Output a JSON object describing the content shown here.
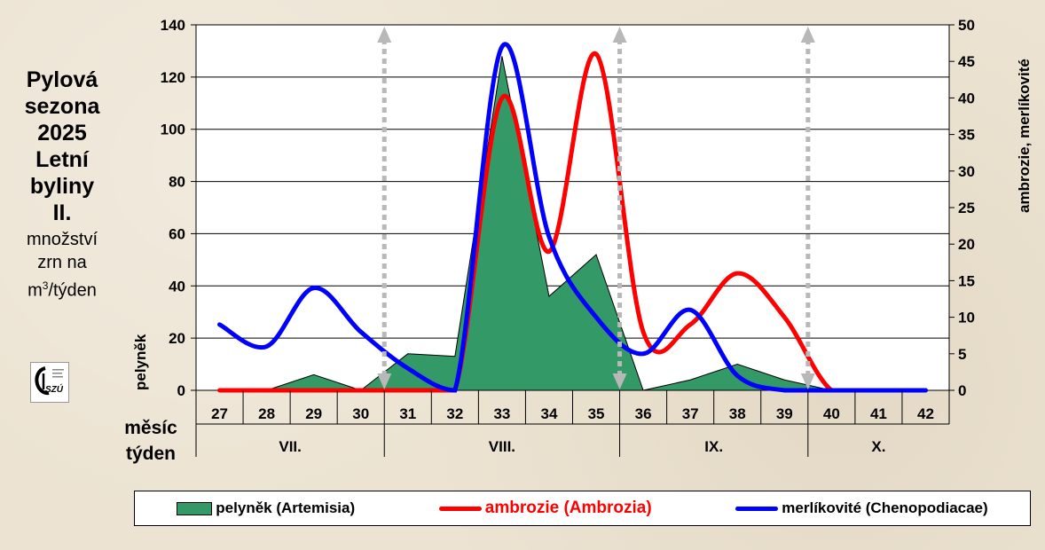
{
  "side_panel": {
    "title_lines": [
      "Pylová",
      "sezona",
      "2025",
      "Letní",
      "byliny",
      "II."
    ],
    "unit_lines": [
      "množství",
      "zrn na"
    ],
    "unit_m": "m",
    "unit_sup": "3",
    "unit_rest": "/týden",
    "logo_text": "SZÚ"
  },
  "colors": {
    "artemisia": "#339966",
    "ambrosia": "#ff0000",
    "chenopodiaceae": "#0000ff",
    "marker": "#b8b8b8"
  },
  "chart_data": {
    "type": "area",
    "categories": [
      "27",
      "28",
      "29",
      "30",
      "31",
      "32",
      "33",
      "34",
      "35",
      "36",
      "37",
      "38",
      "39",
      "40",
      "41",
      "42"
    ],
    "months": [
      {
        "label": "VII.",
        "from": "27",
        "to": "30"
      },
      {
        "label": "VIII.",
        "from": "31",
        "to": "35"
      },
      {
        "label": "IX.",
        "from": "36",
        "to": "39"
      },
      {
        "label": "X.",
        "from": "40",
        "to": "42"
      }
    ],
    "row_labels": {
      "month": "měsíc",
      "week": "týden"
    },
    "y_left": {
      "label": "pelyněk",
      "ylim": [
        0,
        140
      ],
      "ticks": [
        0,
        20,
        40,
        60,
        80,
        100,
        120,
        140
      ]
    },
    "y_right": {
      "label": "ambrozie, merlíkovité",
      "ylim": [
        0,
        50
      ],
      "ticks": [
        0,
        5,
        10,
        15,
        20,
        25,
        30,
        35,
        40,
        45,
        50
      ]
    },
    "grid": "horizontal",
    "legend_position": "bottom",
    "series": [
      {
        "name": "pelyněk (Artemisia)",
        "type": "area",
        "axis": "left",
        "values": [
          0,
          0,
          6,
          0,
          14,
          13,
          128,
          36,
          52,
          0,
          4,
          10,
          4,
          0,
          0,
          0
        ]
      },
      {
        "name": "ambrozie (Ambrozia)",
        "type": "line",
        "axis": "right",
        "values": [
          0,
          0,
          0,
          0,
          0,
          0,
          40,
          19,
          46,
          8,
          9,
          16,
          10,
          0,
          0,
          0
        ]
      },
      {
        "name": "merlíkovité (Chenopodiacae)",
        "type": "line",
        "axis": "right",
        "values": [
          9,
          6,
          14,
          8,
          3,
          0,
          47,
          21,
          10,
          5,
          11,
          2,
          0,
          0,
          0,
          0
        ]
      }
    ],
    "markers_after_weeks": [
      "30",
      "35",
      "39"
    ]
  }
}
